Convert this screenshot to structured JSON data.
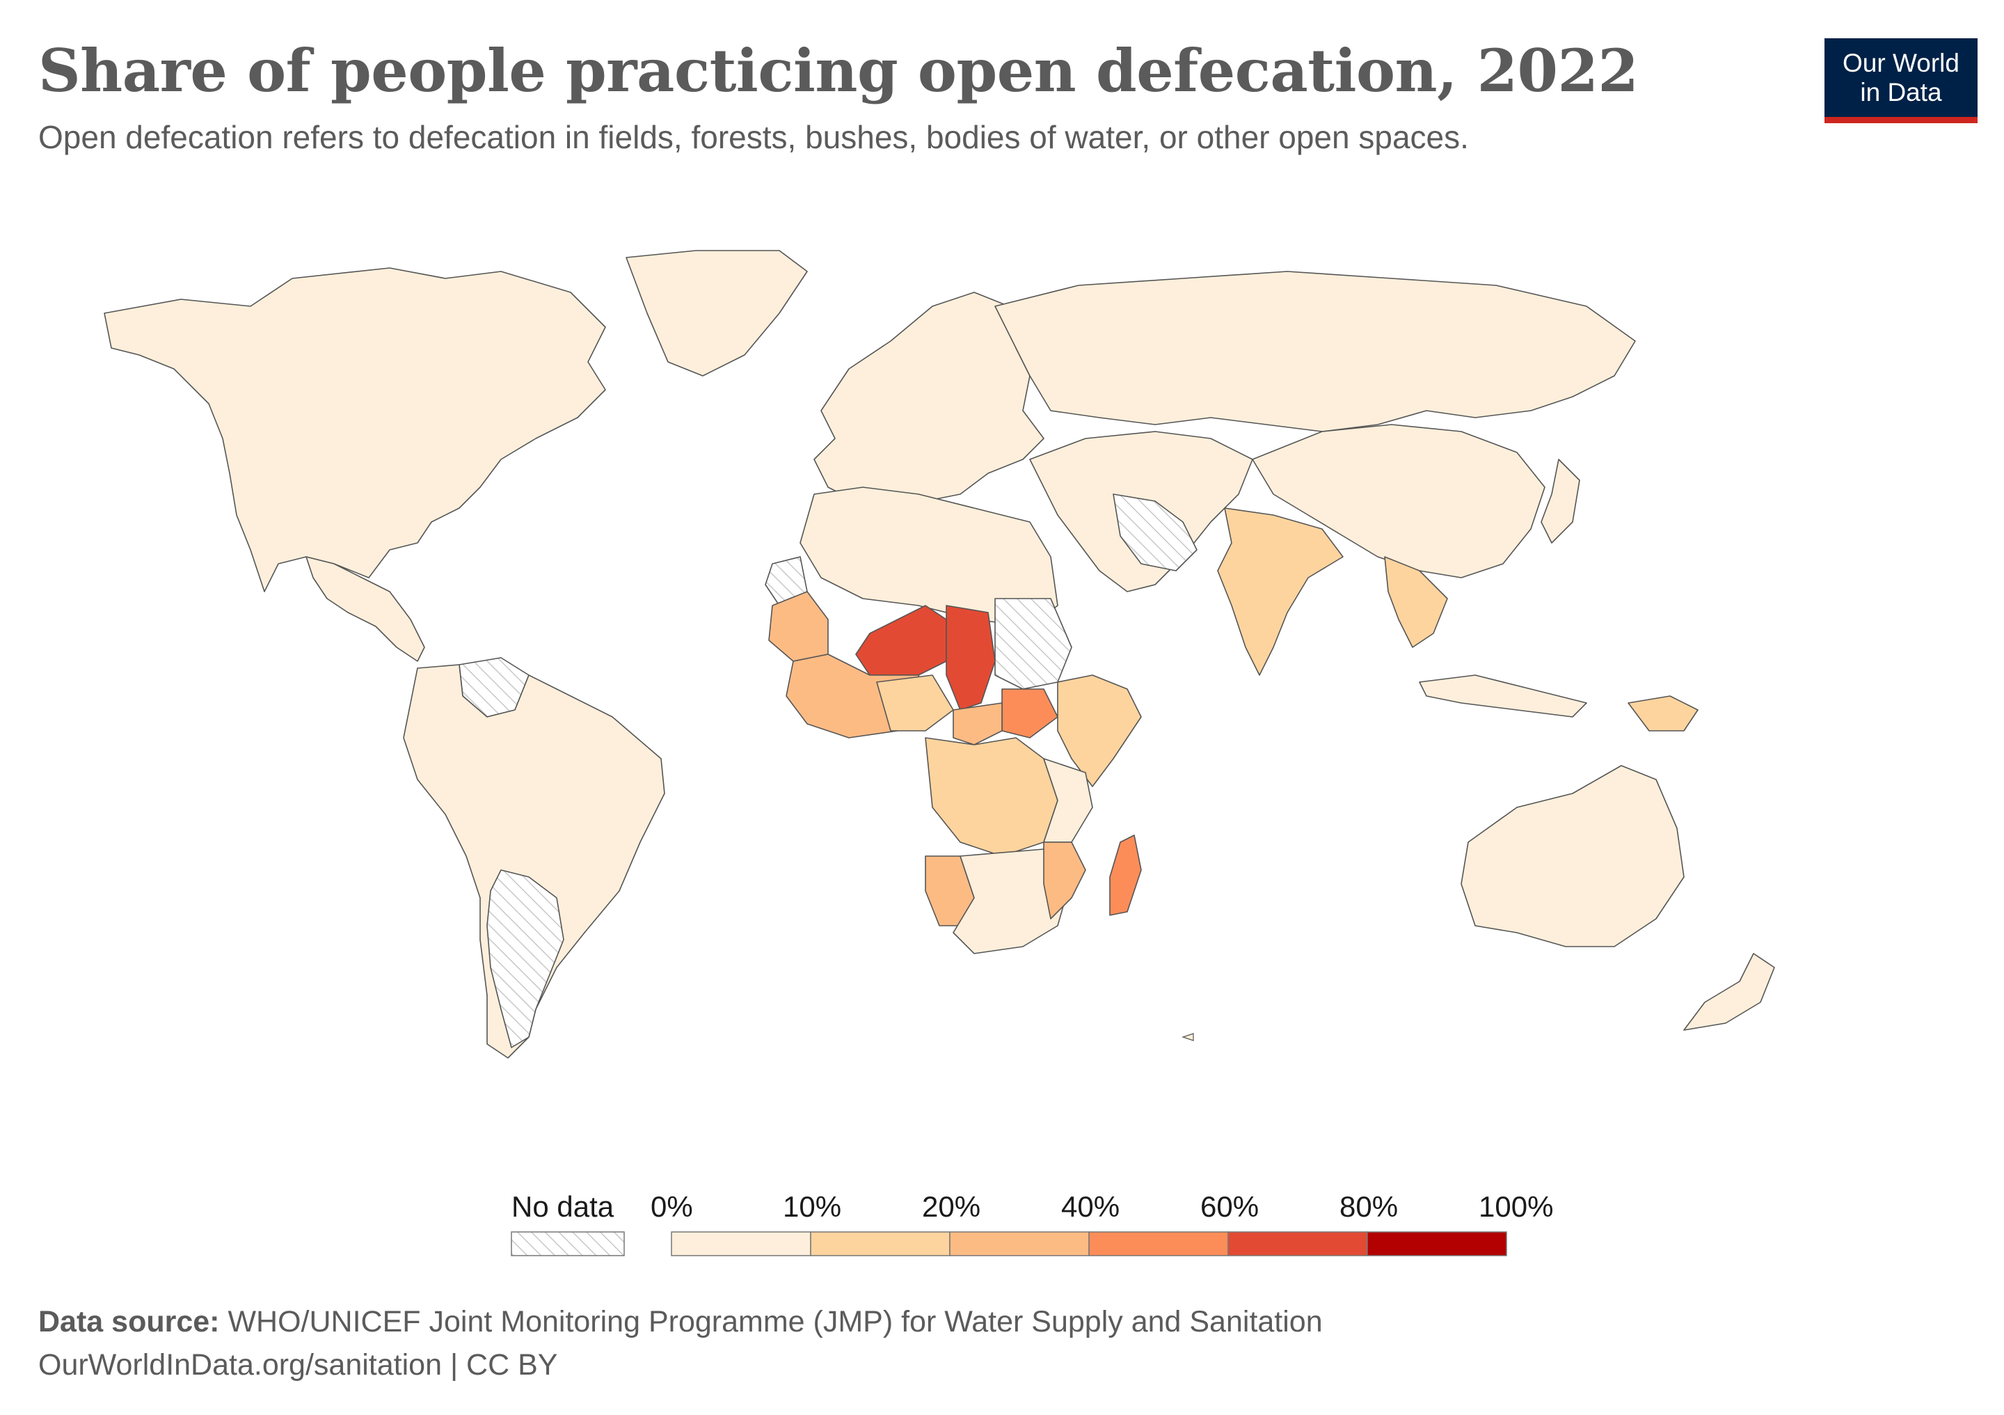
{
  "header": {
    "title": "Share of people practicing open defecation, 2022",
    "subtitle": "Open defecation refers to defecation in fields, forests, bushes, bodies of water, or other open spaces."
  },
  "logo": {
    "line1": "Our World",
    "line2": "in Data"
  },
  "chart_data": {
    "type": "choropleth",
    "year": 2022,
    "unit": "%",
    "bins": [
      0,
      10,
      20,
      40,
      60,
      80,
      100
    ],
    "bin_colors": [
      "#fdefdb",
      "#fdd49e",
      "#fdbb84",
      "#fc8d59",
      "#e34a33",
      "#b30000"
    ],
    "no_data_color": "hatched",
    "regions": [
      {
        "name": "Chad",
        "bin": 4
      },
      {
        "name": "Niger",
        "bin": 4
      },
      {
        "name": "South Sudan",
        "bin": 3
      },
      {
        "name": "Central African Republic",
        "bin": 2
      },
      {
        "name": "Mauritania",
        "bin": 2
      },
      {
        "name": "Burkina Faso",
        "bin": 2
      },
      {
        "name": "Benin",
        "bin": 2
      },
      {
        "name": "Togo",
        "bin": 2
      },
      {
        "name": "Ghana",
        "bin": 1
      },
      {
        "name": "Liberia",
        "bin": 2
      },
      {
        "name": "Ethiopia",
        "bin": 1
      },
      {
        "name": "Somalia",
        "bin": 2
      },
      {
        "name": "Madagascar",
        "bin": 2
      },
      {
        "name": "Namibia",
        "bin": 2
      },
      {
        "name": "Mozambique",
        "bin": 2
      },
      {
        "name": "Angola",
        "bin": 1
      },
      {
        "name": "DR Congo",
        "bin": 1
      },
      {
        "name": "Nigeria",
        "bin": 1
      },
      {
        "name": "Tanzania",
        "bin": 1
      },
      {
        "name": "India",
        "bin": 1
      },
      {
        "name": "Nepal",
        "bin": 1
      },
      {
        "name": "Cambodia",
        "bin": 1
      },
      {
        "name": "Papua New Guinea",
        "bin": 1
      }
    ]
  },
  "legend": {
    "no_data_label": "No data",
    "ticks": [
      "0%",
      "10%",
      "20%",
      "40%",
      "60%",
      "80%",
      "100%"
    ]
  },
  "footer": {
    "source_label": "Data source:",
    "source_text": "WHO/UNICEF Joint Monitoring Programme (JMP) for Water Supply and Sanitation",
    "url_license": "OurWorldInData.org/sanitation | CC BY"
  }
}
